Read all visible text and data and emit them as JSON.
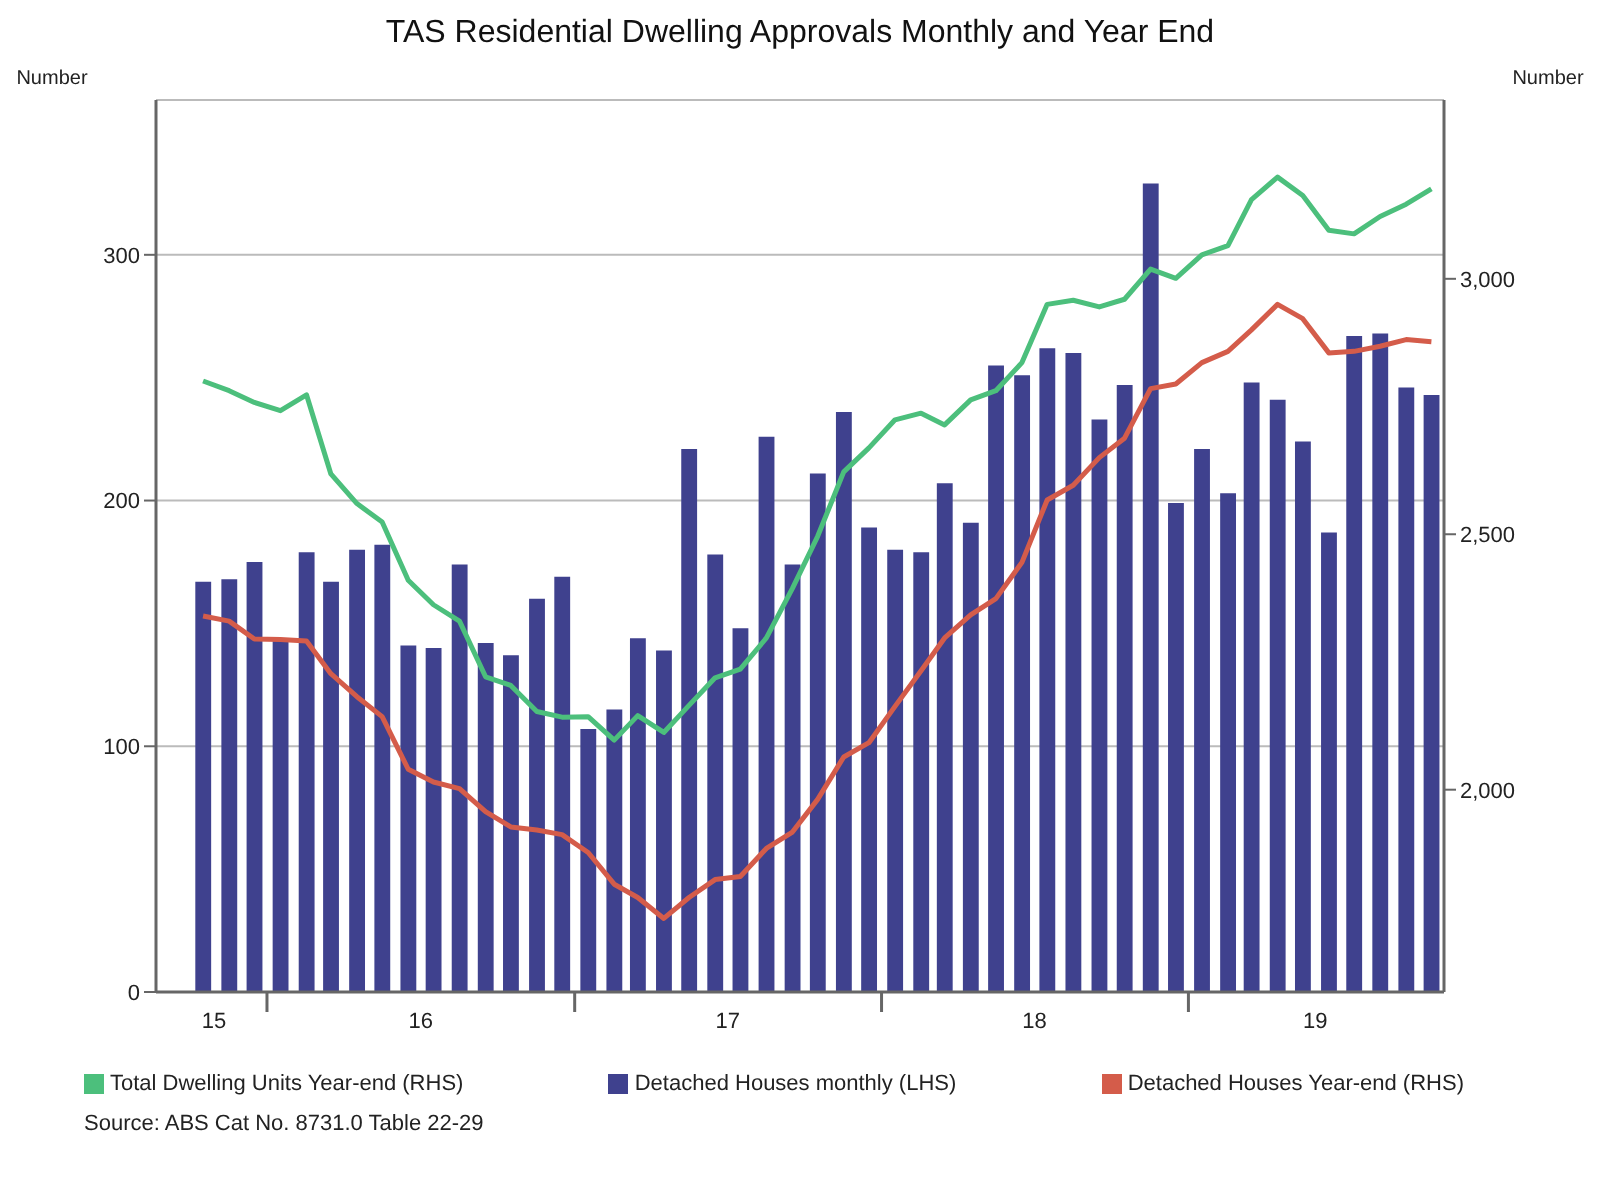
{
  "chart_data": {
    "type": "bar",
    "title": "TAS Residential Dwelling Approvals Monthly and Year End",
    "ylabel": "Number",
    "y2label": "Number",
    "x": [
      "2015-10",
      "2015-11",
      "2015-12",
      "2016-01",
      "2016-02",
      "2016-03",
      "2016-04",
      "2016-05",
      "2016-06",
      "2016-07",
      "2016-08",
      "2016-09",
      "2016-10",
      "2016-11",
      "2016-12",
      "2017-01",
      "2017-02",
      "2017-03",
      "2017-04",
      "2017-05",
      "2017-06",
      "2017-07",
      "2017-08",
      "2017-09",
      "2017-10",
      "2017-11",
      "2017-12",
      "2018-01",
      "2018-02",
      "2018-03",
      "2018-04",
      "2018-05",
      "2018-06",
      "2018-07",
      "2018-08",
      "2018-09",
      "2018-10",
      "2018-11",
      "2018-12",
      "2019-01",
      "2019-02",
      "2019-03",
      "2019-04",
      "2019-05",
      "2019-06",
      "2019-07",
      "2019-08",
      "2019-09",
      "2019-10"
    ],
    "series": [
      {
        "name": "Total Dwelling Units Year-end (RHS)",
        "type": "line",
        "axis": "y2",
        "color": "#4cbf7c",
        "values": [
          2800,
          2781,
          2758,
          2742,
          2773,
          2618,
          2560,
          2524,
          2410,
          2362,
          2330,
          2221,
          2204,
          2153,
          2142,
          2143,
          2097,
          2145,
          2112,
          2165,
          2219,
          2236,
          2297,
          2394,
          2496,
          2622,
          2669,
          2724,
          2737,
          2714,
          2763,
          2781,
          2836,
          2950,
          2958,
          2945,
          2960,
          3019,
          3001,
          3047,
          3065,
          3155,
          3199,
          3163,
          3095,
          3088,
          3122,
          3146,
          3176
        ]
      },
      {
        "name": "Detached Houses monthly (LHS)",
        "color": "#3f418e",
        "values": [
          167,
          168,
          175,
          143,
          179,
          167,
          180,
          182,
          141,
          140,
          174,
          142,
          137,
          160,
          169,
          107,
          115,
          144,
          139,
          221,
          178,
          148,
          226,
          174,
          211,
          236,
          189,
          180,
          179,
          207,
          191,
          255,
          251,
          262,
          260,
          233,
          247,
          329,
          199,
          221,
          203,
          248,
          241,
          224,
          187,
          267,
          268,
          246,
          243
        ]
      },
      {
        "name": "Detached Houses Year-end (RHS)",
        "type": "line",
        "axis": "y2",
        "color": "#d45c4a",
        "values": [
          2340,
          2330,
          2295,
          2294,
          2291,
          2227,
          2182,
          2143,
          2040,
          2015,
          2002,
          1957,
          1927,
          1921,
          1912,
          1877,
          1815,
          1789,
          1748,
          1789,
          1824,
          1830,
          1885,
          1917,
          1981,
          2064,
          2092,
          2163,
          2233,
          2297,
          2342,
          2374,
          2445,
          2567,
          2596,
          2650,
          2688,
          2785,
          2794,
          2836,
          2858,
          2900,
          2950,
          2922,
          2855,
          2858,
          2868,
          2881,
          2877
        ]
      }
    ],
    "xlim": [
      "2015-08-06",
      "2019-10-16"
    ],
    "xticks": [
      {
        "value": "2015-10-14",
        "label": "15"
      },
      {
        "value": "2015-12-16",
        "label": null
      },
      {
        "value": "2016-06-16",
        "label": "16"
      },
      {
        "value": "2016-12-16",
        "label": null
      },
      {
        "value": "2017-06-16",
        "label": "17"
      },
      {
        "value": "2017-12-16",
        "label": null
      },
      {
        "value": "2018-06-16",
        "label": "18"
      },
      {
        "value": "2018-12-16",
        "label": null
      },
      {
        "value": "2019-05-16",
        "label": "19"
      }
    ],
    "ylim": [
      0,
      363
    ],
    "yticks": [
      0,
      100,
      200,
      300
    ],
    "y2lim": [
      1604,
      3350
    ],
    "y2ticks": [
      {
        "value": 2000,
        "label": "2,000"
      },
      {
        "value": 2500,
        "label": "2,500"
      },
      {
        "value": 3000,
        "label": "3,000"
      }
    ],
    "grid": "y",
    "legend": "bottom",
    "marker": "none",
    "line_style": "solid",
    "annotations": [
      "Source: ABS Cat No. 8731.0 Table 22-29"
    ]
  }
}
